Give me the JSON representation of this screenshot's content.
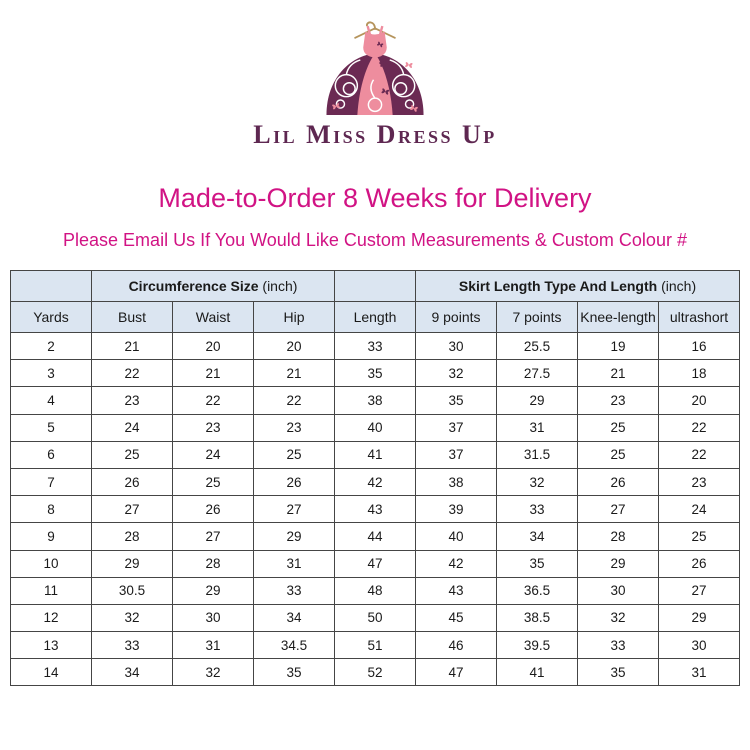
{
  "brand": {
    "name": "Lil Miss Dress Up"
  },
  "headline": {
    "text": "Made-to-Order 8 Weeks for Delivery"
  },
  "subheadline": {
    "text": "Please Email Us If You Would Like Custom Measurements & Custom Colour #"
  },
  "colors": {
    "accent_magenta": "#d11384",
    "header_blue": "#dbe5f1",
    "table_border": "#454545",
    "logo_pink": "#ee8d9e",
    "logo_plum": "#6b2a53",
    "logo_gold": "#b5945c",
    "brand_text": "#5e2751"
  },
  "chart_data": {
    "type": "table",
    "group_headers": [
      {
        "title": "Circumference Size",
        "unit": "(inch)",
        "span": 3
      },
      {
        "title": "Skirt Length Type And Length",
        "unit": "(inch)",
        "span": 4
      }
    ],
    "columns": [
      "Yards",
      "Bust",
      "Waist",
      "Hip",
      "Length",
      "9 points",
      "7 points",
      "Knee-length",
      "ultrashort"
    ],
    "rows": [
      [
        2,
        21,
        20,
        20,
        33,
        30,
        25.5,
        19,
        16
      ],
      [
        3,
        22,
        21,
        21,
        35,
        32,
        27.5,
        21,
        18
      ],
      [
        4,
        23,
        22,
        22,
        38,
        35,
        29,
        23,
        20
      ],
      [
        5,
        24,
        23,
        23,
        40,
        37,
        31,
        25,
        22
      ],
      [
        6,
        25,
        24,
        25,
        41,
        37,
        31.5,
        25,
        22
      ],
      [
        7,
        26,
        25,
        26,
        42,
        38,
        32,
        26,
        23
      ],
      [
        8,
        27,
        26,
        27,
        43,
        39,
        33,
        27,
        24
      ],
      [
        9,
        28,
        27,
        29,
        44,
        40,
        34,
        28,
        25
      ],
      [
        10,
        29,
        28,
        31,
        47,
        42,
        35,
        29,
        26
      ],
      [
        11,
        30.5,
        29,
        33,
        48,
        43,
        36.5,
        30,
        27
      ],
      [
        12,
        32,
        30,
        34,
        50,
        45,
        38.5,
        32,
        29
      ],
      [
        13,
        33,
        31,
        34.5,
        51,
        46,
        39.5,
        33,
        30
      ],
      [
        14,
        34,
        32,
        35,
        52,
        47,
        41,
        35,
        31
      ]
    ]
  }
}
